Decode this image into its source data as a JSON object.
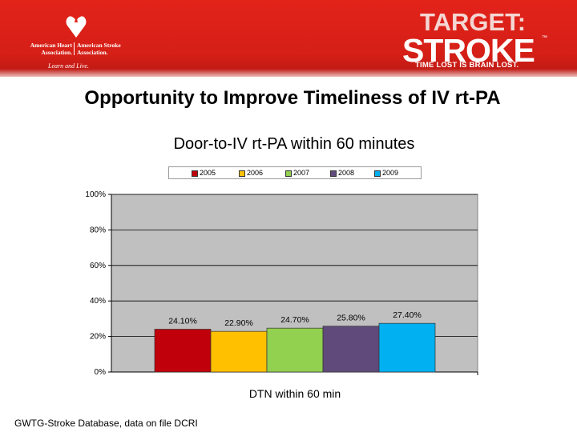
{
  "header": {
    "logo": {
      "line1_left": "American Heart",
      "line2_left": "Association.",
      "line1_right": "American Stroke",
      "line2_right": "Association.",
      "tagline": "Learn and Live."
    },
    "brand": {
      "line1": "TARGET:",
      "line2": "STROKE",
      "tm": "™",
      "tagline": "TIME LOST IS BRAIN LOST."
    }
  },
  "slide_title": "Opportunity to Improve Timeliness of IV rt-PA",
  "source_note": "GWTG-Stroke Database, data on file DCRI",
  "legend_items": [
    {
      "label": "2005",
      "color": "#c0000a"
    },
    {
      "label": "2006",
      "color": "#ffc000"
    },
    {
      "label": "2007",
      "color": "#92d050"
    },
    {
      "label": "2008",
      "color": "#604a7b"
    },
    {
      "label": "2009",
      "color": "#00b0f0"
    }
  ],
  "chart_data": {
    "type": "bar",
    "title": "Door-to-IV rt-PA within 60 minutes",
    "categories": [
      "DTN within 60 min"
    ],
    "xlabel": "DTN within 60 min",
    "ylabel": "",
    "ylim": [
      0,
      100
    ],
    "yticks": [
      0,
      20,
      40,
      60,
      80,
      100
    ],
    "ytick_labels": [
      "0%",
      "20%",
      "40%",
      "60%",
      "80%",
      "100%"
    ],
    "grid": true,
    "legend_position": "top",
    "plot_background": "#c0c0c0",
    "series": [
      {
        "name": "2005",
        "values": [
          24.1
        ],
        "label": "24.10%",
        "color": "#c0000a"
      },
      {
        "name": "2006",
        "values": [
          22.9
        ],
        "label": "22.90%",
        "color": "#ffc000"
      },
      {
        "name": "2007",
        "values": [
          24.7
        ],
        "label": "24.70%",
        "color": "#92d050"
      },
      {
        "name": "2008",
        "values": [
          25.8
        ],
        "label": "25.80%",
        "color": "#604a7b"
      },
      {
        "name": "2009",
        "values": [
          27.4
        ],
        "label": "27.40%",
        "color": "#00b0f0"
      }
    ]
  }
}
